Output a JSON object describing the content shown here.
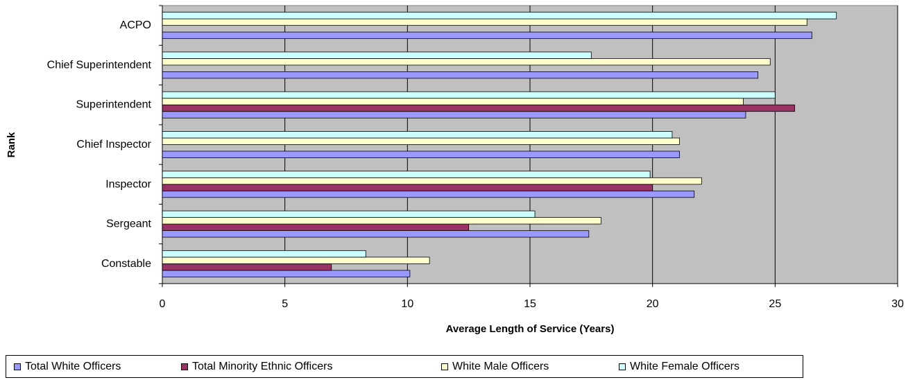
{
  "chart_data": {
    "type": "bar",
    "orientation": "horizontal",
    "categories": [
      "ACPO",
      "Chief Superintendent",
      "Superintendent",
      "Chief Inspector",
      "Inspector",
      "Sergeant",
      "Constable"
    ],
    "series": [
      {
        "name": "Total White Officers",
        "color": "#9999ff",
        "values": [
          26.5,
          24.3,
          23.8,
          21.1,
          21.7,
          17.4,
          10.1
        ]
      },
      {
        "name": "Total Minority Ethnic Officers",
        "color": "#993366",
        "values": [
          null,
          null,
          25.8,
          null,
          20.0,
          12.5,
          6.9
        ]
      },
      {
        "name": "White Male Officers",
        "color": "#ffffcc",
        "values": [
          26.3,
          24.8,
          23.7,
          21.1,
          22.0,
          17.9,
          10.9
        ]
      },
      {
        "name": "White Female Officers",
        "color": "#ccffff",
        "values": [
          27.5,
          17.5,
          25.0,
          20.8,
          19.9,
          15.2,
          8.3
        ]
      }
    ],
    "xlabel": "Average Length of Service (Years)",
    "ylabel": "Rank",
    "xlim": [
      0,
      30
    ],
    "xticks": [
      "0",
      "5",
      "10",
      "15",
      "20",
      "25",
      "30"
    ],
    "grid": true,
    "plot_background": "#c0c0c0",
    "legend_position": "bottom"
  }
}
